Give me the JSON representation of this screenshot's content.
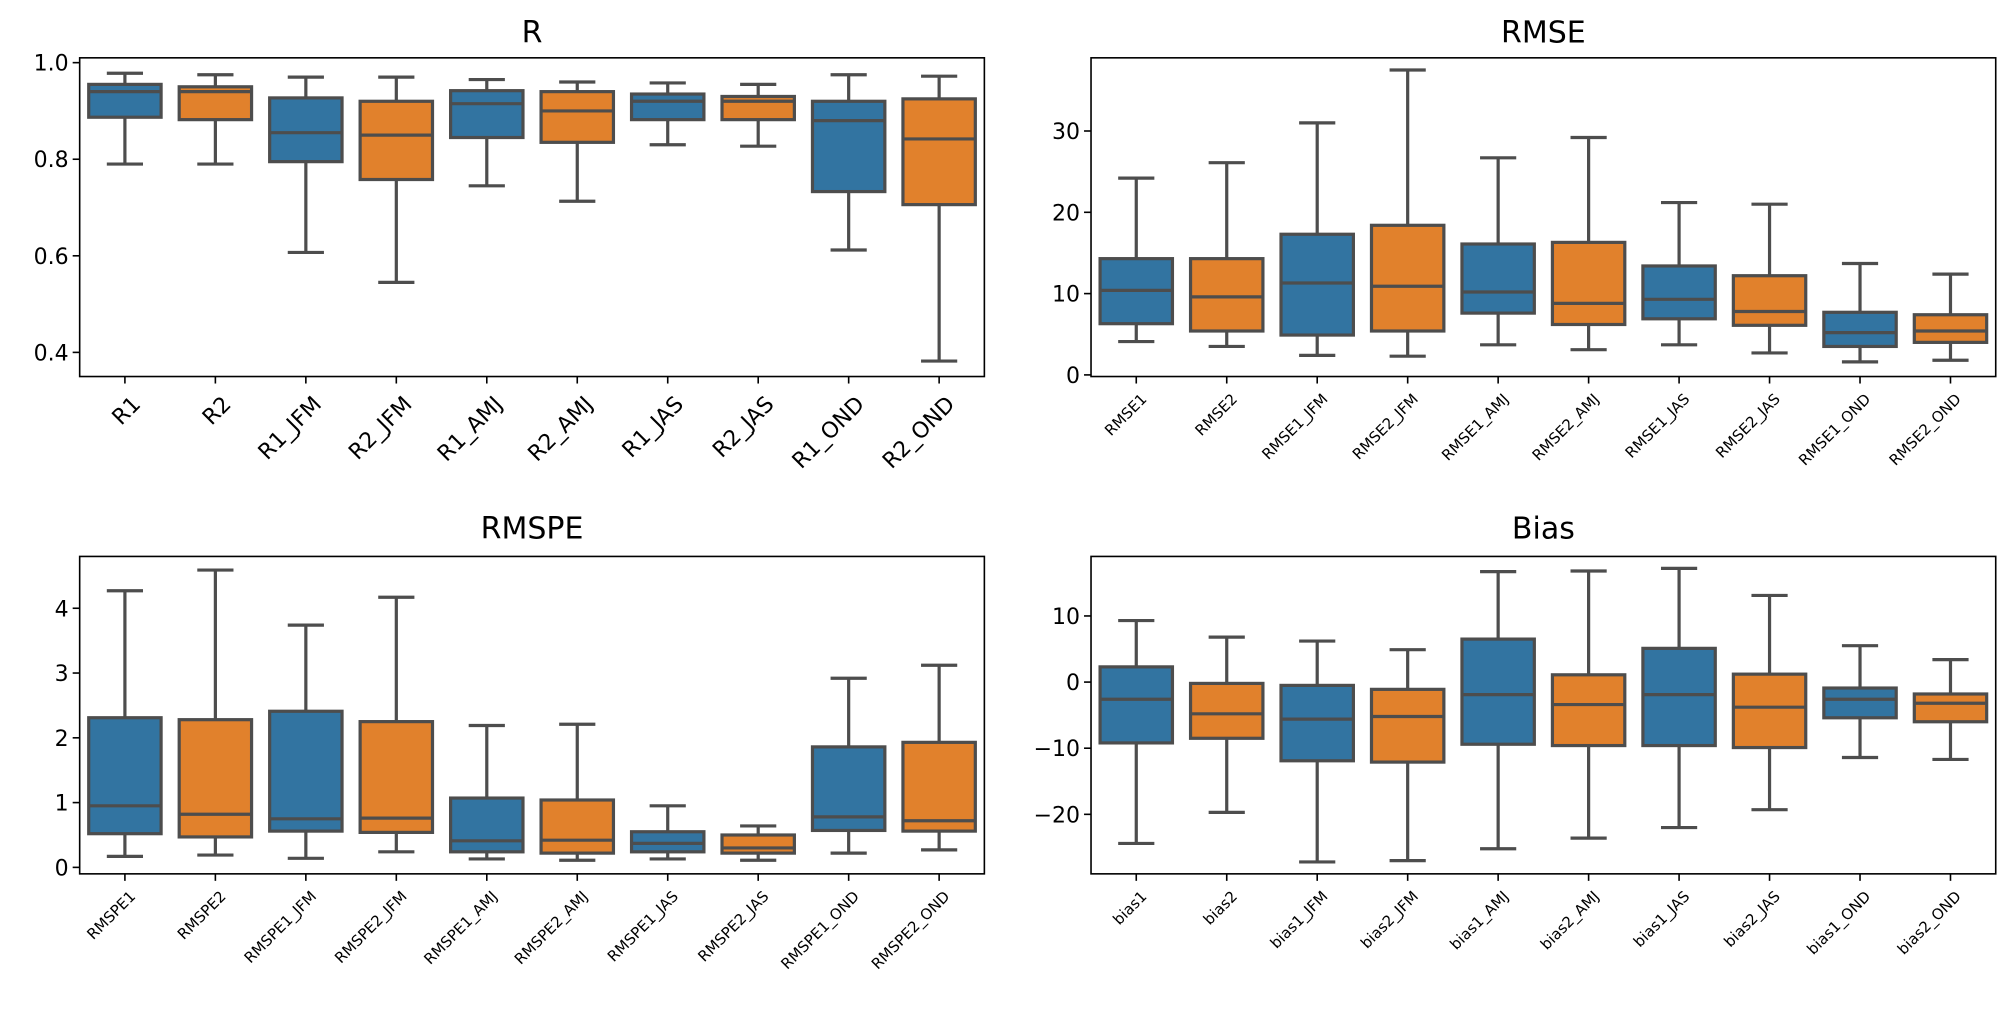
{
  "colors": {
    "series1": "#3274a1",
    "series2": "#e1812c",
    "line": "#4d4d4d"
  },
  "chart_data": [
    {
      "type": "box",
      "title": "R",
      "xlabel": "",
      "ylabel": "",
      "ylim": [
        0.35,
        1.01
      ],
      "yticks": [
        0.4,
        0.6,
        0.8,
        1.0
      ],
      "ytick_labels": [
        "0.4",
        "0.6",
        "0.8",
        "1.0"
      ],
      "xtick_style": "large",
      "categories": [
        "R1",
        "R2",
        "R1_JFM",
        "R2_JFM",
        "R1_AMJ",
        "R2_AMJ",
        "R1_JAS",
        "R2_JAS",
        "R1_OND",
        "R2_OND"
      ],
      "colors_by_index": [
        "series1",
        "series2",
        "series1",
        "series2",
        "series1",
        "series2",
        "series1",
        "series2",
        "series1",
        "series2"
      ],
      "boxes": [
        {
          "whislo": 0.79,
          "q1": 0.887,
          "med": 0.94,
          "q3": 0.955,
          "whishi": 0.978
        },
        {
          "whislo": 0.79,
          "q1": 0.882,
          "med": 0.94,
          "q3": 0.95,
          "whishi": 0.975
        },
        {
          "whislo": 0.607,
          "q1": 0.795,
          "med": 0.855,
          "q3": 0.927,
          "whishi": 0.97
        },
        {
          "whislo": 0.545,
          "q1": 0.758,
          "med": 0.85,
          "q3": 0.92,
          "whishi": 0.97
        },
        {
          "whislo": 0.745,
          "q1": 0.845,
          "med": 0.915,
          "q3": 0.942,
          "whishi": 0.965
        },
        {
          "whislo": 0.713,
          "q1": 0.835,
          "med": 0.9,
          "q3": 0.94,
          "whishi": 0.96
        },
        {
          "whislo": 0.83,
          "q1": 0.882,
          "med": 0.92,
          "q3": 0.935,
          "whishi": 0.958
        },
        {
          "whislo": 0.827,
          "q1": 0.882,
          "med": 0.92,
          "q3": 0.93,
          "whishi": 0.955
        },
        {
          "whislo": 0.612,
          "q1": 0.733,
          "med": 0.88,
          "q3": 0.92,
          "whishi": 0.975
        },
        {
          "whislo": 0.382,
          "q1": 0.706,
          "med": 0.842,
          "q3": 0.925,
          "whishi": 0.972
        }
      ]
    },
    {
      "type": "box",
      "title": "RMSE",
      "xlabel": "",
      "ylabel": "",
      "ylim": [
        -0.2,
        39
      ],
      "yticks": [
        0,
        10,
        20,
        30
      ],
      "ytick_labels": [
        "0",
        "10",
        "20",
        "30"
      ],
      "xtick_style": "small",
      "categories": [
        "RMSE1",
        "RMSE2",
        "RMSE1_JFM",
        "RMSE2_JFM",
        "RMSE1_AMJ",
        "RMSE2_AMJ",
        "RMSE1_JAS",
        "RMSE2_JAS",
        "RMSE1_OND",
        "RMSE2_OND"
      ],
      "colors_by_index": [
        "series1",
        "series2",
        "series1",
        "series2",
        "series1",
        "series2",
        "series1",
        "series2",
        "series1",
        "series2"
      ],
      "boxes": [
        {
          "whislo": 4.1,
          "q1": 6.3,
          "med": 10.4,
          "q3": 14.3,
          "whishi": 24.2
        },
        {
          "whislo": 3.5,
          "q1": 5.4,
          "med": 9.6,
          "q3": 14.3,
          "whishi": 26.1
        },
        {
          "whislo": 2.4,
          "q1": 4.9,
          "med": 11.3,
          "q3": 17.3,
          "whishi": 31.0
        },
        {
          "whislo": 2.3,
          "q1": 5.4,
          "med": 10.9,
          "q3": 18.4,
          "whishi": 37.5
        },
        {
          "whislo": 3.7,
          "q1": 7.6,
          "med": 10.2,
          "q3": 16.1,
          "whishi": 26.7
        },
        {
          "whislo": 3.1,
          "q1": 6.2,
          "med": 8.8,
          "q3": 16.3,
          "whishi": 29.2
        },
        {
          "whislo": 3.7,
          "q1": 6.9,
          "med": 9.3,
          "q3": 13.4,
          "whishi": 21.2
        },
        {
          "whislo": 2.7,
          "q1": 6.1,
          "med": 7.8,
          "q3": 12.2,
          "whishi": 21.0
        },
        {
          "whislo": 1.6,
          "q1": 3.5,
          "med": 5.2,
          "q3": 7.7,
          "whishi": 13.7
        },
        {
          "whislo": 1.8,
          "q1": 4.0,
          "med": 5.4,
          "q3": 7.4,
          "whishi": 12.4
        }
      ]
    },
    {
      "type": "box",
      "title": "RMSPE",
      "xlabel": "",
      "ylabel": "",
      "ylim": [
        -0.1,
        4.8
      ],
      "yticks": [
        0,
        1,
        2,
        3,
        4
      ],
      "ytick_labels": [
        "0",
        "1",
        "2",
        "3",
        "4"
      ],
      "xtick_style": "small",
      "categories": [
        "RMSPE1",
        "RMSPE2",
        "RMSPE1_JFM",
        "RMSPE2_JFM",
        "RMSPE1_AMJ",
        "RMSPE2_AMJ",
        "RMSPE1_JAS",
        "RMSPE2_JAS",
        "RMSPE1_OND",
        "RMSPE2_OND"
      ],
      "colors_by_index": [
        "series1",
        "series2",
        "series1",
        "series2",
        "series1",
        "series2",
        "series1",
        "series2",
        "series1",
        "series2"
      ],
      "boxes": [
        {
          "whislo": 0.17,
          "q1": 0.52,
          "med": 0.95,
          "q3": 2.31,
          "whishi": 4.27
        },
        {
          "whislo": 0.19,
          "q1": 0.47,
          "med": 0.82,
          "q3": 2.28,
          "whishi": 4.59
        },
        {
          "whislo": 0.14,
          "q1": 0.56,
          "med": 0.75,
          "q3": 2.41,
          "whishi": 3.74
        },
        {
          "whislo": 0.24,
          "q1": 0.54,
          "med": 0.76,
          "q3": 2.25,
          "whishi": 4.17
        },
        {
          "whislo": 0.13,
          "q1": 0.24,
          "med": 0.41,
          "q3": 1.07,
          "whishi": 2.19
        },
        {
          "whislo": 0.11,
          "q1": 0.22,
          "med": 0.42,
          "q3": 1.04,
          "whishi": 2.21
        },
        {
          "whislo": 0.13,
          "q1": 0.24,
          "med": 0.37,
          "q3": 0.55,
          "whishi": 0.95
        },
        {
          "whislo": 0.11,
          "q1": 0.22,
          "med": 0.3,
          "q3": 0.5,
          "whishi": 0.64
        },
        {
          "whislo": 0.22,
          "q1": 0.57,
          "med": 0.78,
          "q3": 1.86,
          "whishi": 2.92
        },
        {
          "whislo": 0.27,
          "q1": 0.56,
          "med": 0.72,
          "q3": 1.93,
          "whishi": 3.12
        }
      ]
    },
    {
      "type": "box",
      "title": "Bias",
      "xlabel": "",
      "ylabel": "",
      "ylim": [
        -29,
        19
      ],
      "yticks": [
        -20,
        -10,
        0,
        10
      ],
      "ytick_labels": [
        "−20",
        "−10",
        "0",
        "10"
      ],
      "xtick_style": "small",
      "categories": [
        "bias1",
        "bias2",
        "bias1_JFM",
        "bias2_JFM",
        "bias1_AMJ",
        "bias2_AMJ",
        "bias1_JAS",
        "bias2_JAS",
        "bias1_OND",
        "bias2_OND"
      ],
      "colors_by_index": [
        "series1",
        "series2",
        "series1",
        "series2",
        "series1",
        "series2",
        "series1",
        "series2",
        "series1",
        "series2"
      ],
      "boxes": [
        {
          "whislo": -24.4,
          "q1": -9.2,
          "med": -2.6,
          "q3": 2.3,
          "whishi": 9.3
        },
        {
          "whislo": -19.7,
          "q1": -8.5,
          "med": -4.8,
          "q3": -0.2,
          "whishi": 6.8
        },
        {
          "whislo": -27.2,
          "q1": -11.9,
          "med": -5.6,
          "q3": -0.5,
          "whishi": 6.2
        },
        {
          "whislo": -27.0,
          "q1": -12.1,
          "med": -5.2,
          "q3": -1.1,
          "whishi": 4.9
        },
        {
          "whislo": -25.2,
          "q1": -9.4,
          "med": -1.9,
          "q3": 6.5,
          "whishi": 16.7
        },
        {
          "whislo": -23.6,
          "q1": -9.6,
          "med": -3.4,
          "q3": 1.1,
          "whishi": 16.8
        },
        {
          "whislo": -22.0,
          "q1": -9.6,
          "med": -1.9,
          "q3": 5.1,
          "whishi": 17.2
        },
        {
          "whislo": -19.3,
          "q1": -9.9,
          "med": -3.8,
          "q3": 1.2,
          "whishi": 13.1
        },
        {
          "whislo": -11.4,
          "q1": -5.4,
          "med": -2.6,
          "q3": -0.9,
          "whishi": 5.5
        },
        {
          "whislo": -11.7,
          "q1": -6.0,
          "med": -3.2,
          "q3": -1.8,
          "whishi": 3.4
        }
      ]
    }
  ]
}
